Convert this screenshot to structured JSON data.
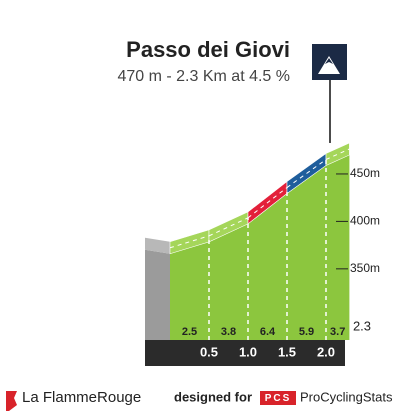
{
  "chart_data": {
    "type": "climb-profile",
    "title": "Passo dei Giovi",
    "subtitle": "470 m - 2.3 Km at 4.5 %",
    "summit_elevation": 470,
    "xlim": [
      0,
      2.3
    ],
    "xticks": [
      0.5,
      {
        "value": 1,
        "label": "1.0"
      },
      1.5,
      {
        "value": 2,
        "label": "2.0"
      },
      2.3
    ],
    "ylim": [
      275,
      490
    ],
    "yticks": [
      {
        "value": 350,
        "label": "350m"
      },
      {
        "value": 400,
        "label": "400m"
      },
      {
        "value": 450,
        "label": "450m"
      }
    ],
    "gradients": {
      "values": [
        2.5,
        3.8,
        6.4,
        5.9,
        3.7
      ],
      "colors": [
        "#a5d65a",
        "#a5d65a",
        "#e3203a",
        "#1f5e9c",
        "#a5d65a"
      ]
    },
    "front_color": "#8cc63e",
    "footer": {
      "brand": "La FlammeRouge",
      "designed_for": "designed for",
      "logo": "PCS",
      "site": "ProCyclingStats"
    }
  }
}
